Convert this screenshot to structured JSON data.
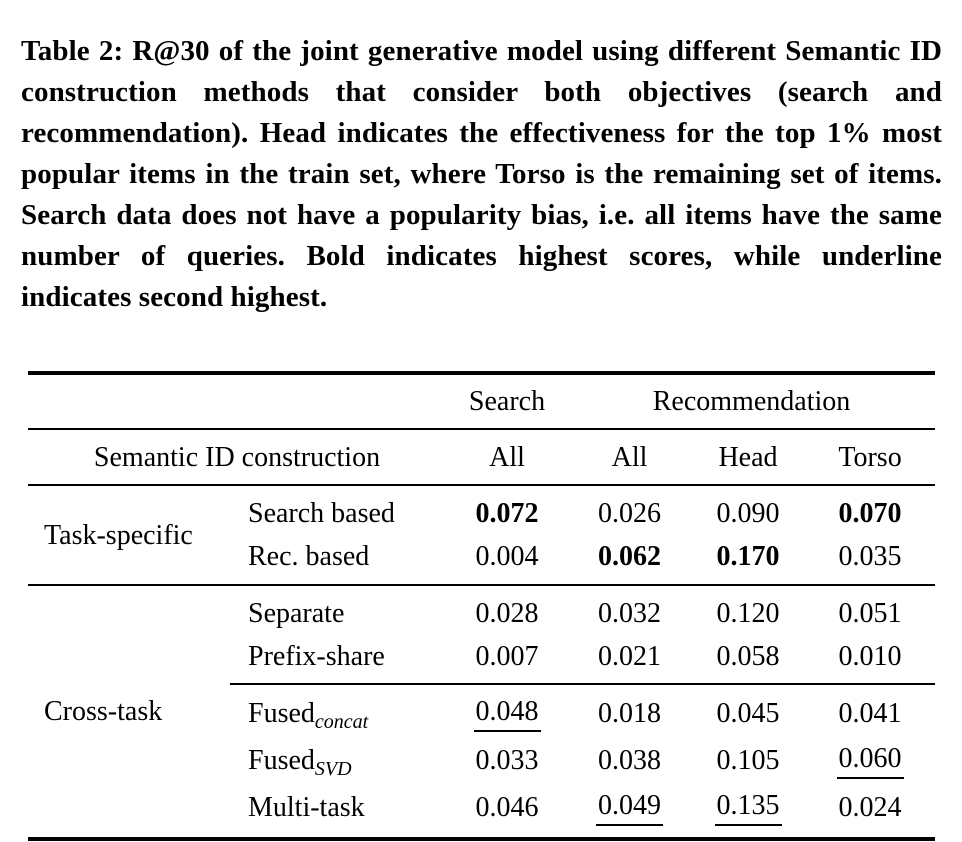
{
  "caption": {
    "label": "Table 2:",
    "text": "R@30 of the joint generative model using different Semantic ID construction methods that consider both objectives (search and recommendation). Head indicates the effectiveness for the top 1% most popular items in the train set, where Torso is the remaining set of items. Search data does not have a popularity bias, i.e. all items have the same number of queries. Bold indicates highest scores, while underline indicates second highest."
  },
  "table": {
    "col_groups": [
      {
        "label": "Search"
      },
      {
        "label": "Recommendation"
      }
    ],
    "header": {
      "row_label": "Semantic ID construction",
      "cols": [
        "All",
        "All",
        "Head",
        "Torso"
      ]
    },
    "group_labels": [
      "Task-specific",
      "Cross-task"
    ],
    "rows": [
      {
        "method": "Search based",
        "values": [
          "0.072",
          "0.026",
          "0.090",
          "0.070"
        ],
        "emphasis": [
          "bold",
          "",
          "",
          "bold"
        ]
      },
      {
        "method": "Rec. based",
        "values": [
          "0.004",
          "0.062",
          "0.170",
          "0.035"
        ],
        "emphasis": [
          "",
          "bold",
          "bold",
          ""
        ]
      },
      {
        "method": "Separate",
        "values": [
          "0.028",
          "0.032",
          "0.120",
          "0.051"
        ],
        "emphasis": [
          "",
          "",
          "",
          ""
        ]
      },
      {
        "method": "Prefix-share",
        "values": [
          "0.007",
          "0.021",
          "0.058",
          "0.010"
        ],
        "emphasis": [
          "",
          "",
          "",
          ""
        ]
      },
      {
        "method": "Fused",
        "sub": "concat",
        "values": [
          "0.048",
          "0.018",
          "0.045",
          "0.041"
        ],
        "emphasis": [
          "underline",
          "",
          "",
          ""
        ]
      },
      {
        "method": "Fused",
        "sub": "SVD",
        "values": [
          "0.033",
          "0.038",
          "0.105",
          "0.060"
        ],
        "emphasis": [
          "",
          "",
          "",
          "underline"
        ]
      },
      {
        "method": "Multi-task",
        "values": [
          "0.046",
          "0.049",
          "0.135",
          "0.024"
        ],
        "emphasis": [
          "",
          "underline",
          "underline",
          ""
        ]
      }
    ]
  }
}
